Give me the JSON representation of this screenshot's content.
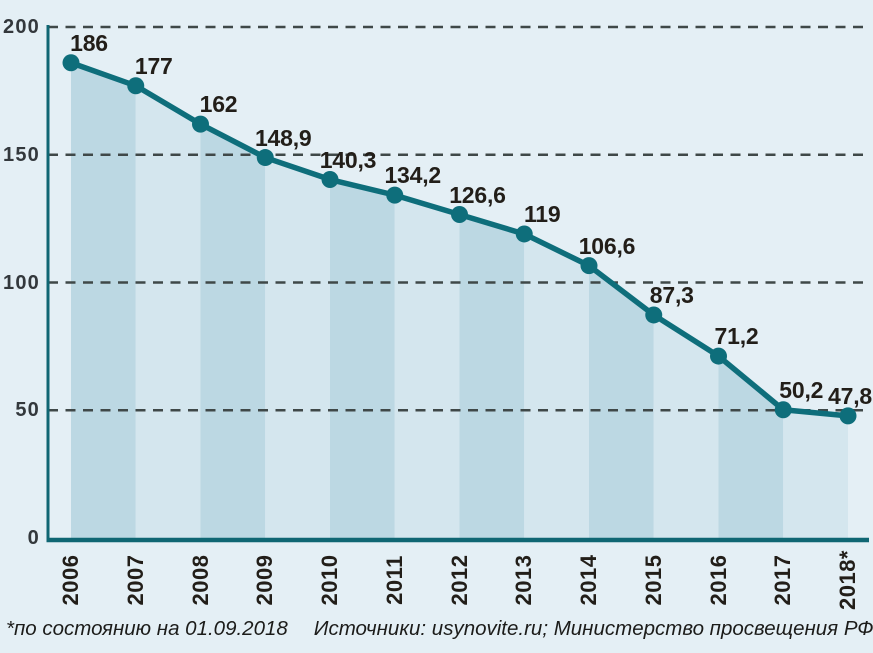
{
  "chart_data": {
    "type": "area",
    "title": "",
    "categories": [
      "2006",
      "2007",
      "2008",
      "2009",
      "2010",
      "2011",
      "2012",
      "2013",
      "2014",
      "2015",
      "2016",
      "2017",
      "2018*"
    ],
    "values": [
      186,
      177,
      162,
      148.9,
      140.3,
      134.2,
      126.6,
      119,
      106.6,
      87.3,
      71.2,
      50.2,
      47.8
    ],
    "point_labels": [
      "186",
      "177",
      "162",
      "148,9",
      "140,3",
      "134,2",
      "126,6",
      "119",
      "106,6",
      "87,3",
      "71,2",
      "50,2",
      "47,8"
    ],
    "xlabel": "",
    "ylabel": "",
    "ylim": [
      0,
      200
    ],
    "yticks": [
      0,
      50,
      100,
      150,
      200
    ],
    "ytick_labels": [
      "0",
      "50",
      "100",
      "150",
      "200"
    ],
    "grid": "horizontal-dashed",
    "legend": "none",
    "colors": {
      "background": "#e4eff5",
      "band_dark": "#bcd8e3",
      "band_light": "#d4e6ee",
      "line": "#0e6e7b",
      "dot": "#0e6e7b",
      "axis": "#0f6673",
      "gridline": "#3f4848",
      "point_label": "#221e19",
      "tick_label": "#33383c"
    }
  },
  "footer": {
    "note": "*по состоянию на 01.09.2018",
    "sources": "Источники: usynovite.ru; Министерство просвещения РФ"
  }
}
